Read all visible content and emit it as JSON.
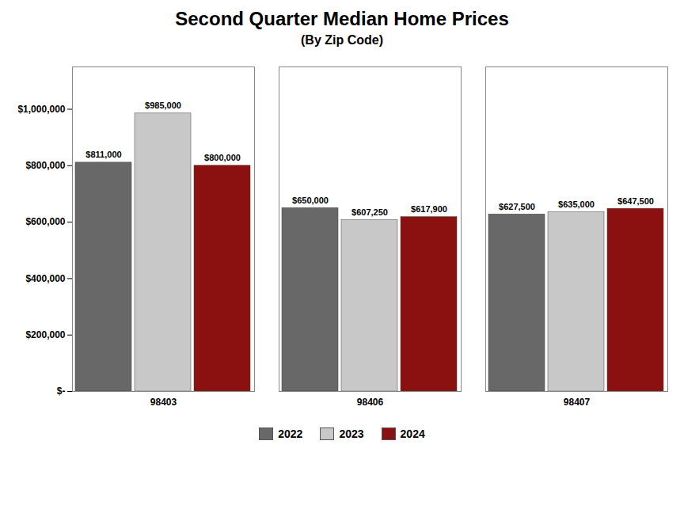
{
  "chart_data": {
    "type": "bar",
    "title": "Second Quarter Median Home Prices",
    "subtitle": "(By Zip Code)",
    "categories": [
      "98403",
      "98406",
      "98407"
    ],
    "series": [
      {
        "name": "2022",
        "color": "#686868",
        "values": [
          811000,
          650000,
          627500
        ],
        "value_labels": [
          "$811,000",
          "$650,000",
          "$627,500"
        ]
      },
      {
        "name": "2023",
        "color": "#c8c8c8",
        "values": [
          985000,
          607250,
          635000
        ],
        "value_labels": [
          "$985,000",
          "$607,250",
          "$635,000"
        ]
      },
      {
        "name": "2024",
        "color": "#8b1010",
        "values": [
          800000,
          617900,
          647500
        ],
        "value_labels": [
          "$800,000",
          "$617,900",
          "$647,500"
        ]
      }
    ],
    "ylim": [
      0,
      1150000
    ],
    "yticks": [
      {
        "value": 0,
        "label": "$-"
      },
      {
        "value": 200000,
        "label": "$200,000"
      },
      {
        "value": 400000,
        "label": "$400,000"
      },
      {
        "value": 600000,
        "label": "$600,000"
      },
      {
        "value": 800000,
        "label": "$800,000"
      },
      {
        "value": 1000000,
        "label": "$1,000,000"
      }
    ],
    "data_labels": true,
    "grid": false,
    "legend": "bottom"
  }
}
